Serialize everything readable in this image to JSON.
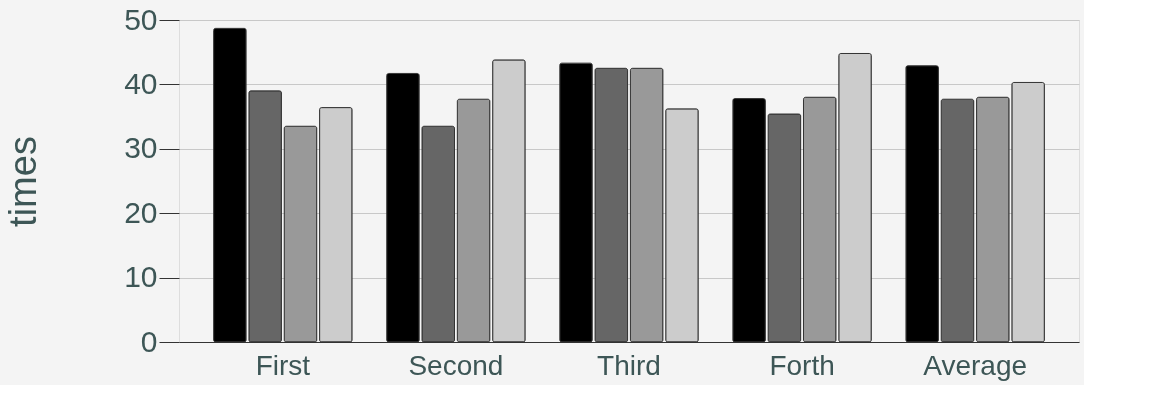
{
  "chart_data": {
    "type": "bar",
    "ylabel": "times",
    "categories": [
      "First",
      "Second",
      "Third",
      "Forth",
      "Average"
    ],
    "series": [
      {
        "color": "#000000",
        "values": [
          48.7,
          41.7,
          43.3,
          37.8,
          42.9
        ]
      },
      {
        "color": "#666666",
        "values": [
          39.0,
          33.5,
          42.5,
          35.4,
          37.7
        ]
      },
      {
        "color": "#999999",
        "values": [
          33.5,
          37.7,
          42.5,
          38.0,
          38.0
        ]
      },
      {
        "color": "#cccccc",
        "values": [
          36.4,
          43.8,
          36.2,
          44.8,
          40.3
        ]
      }
    ],
    "ylim": [
      0,
      50
    ],
    "yticks": [
      0,
      10,
      20,
      30,
      40,
      50
    ],
    "grid": "y",
    "legend": false
  }
}
